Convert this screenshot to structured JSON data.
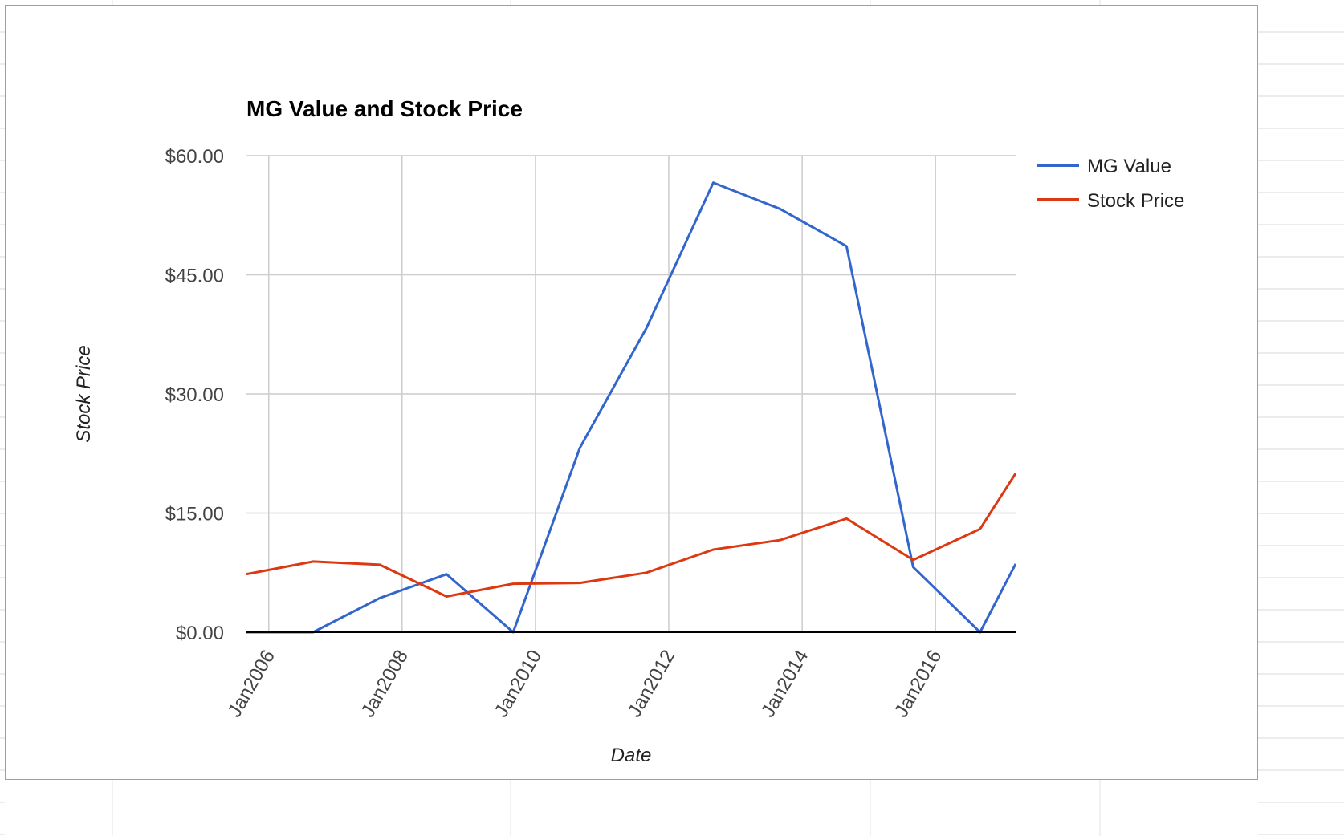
{
  "chart_data": {
    "type": "line",
    "title": "MG Value and Stock Price",
    "xlabel": "Date",
    "ylabel": "Stock Price",
    "x_ticks": [
      "Jan2006",
      "Jan2008",
      "Jan2010",
      "Jan2012",
      "Jan2014",
      "Jan2016"
    ],
    "y_ticks": [
      "$0.00",
      "$15.00",
      "$30.00",
      "$45.00",
      "$60.00"
    ],
    "ylim": [
      0,
      60
    ],
    "xlim": [
      "2005-09-01",
      "2017-03-15"
    ],
    "grid": true,
    "legend_position": "right",
    "x": [
      "2005-09-01",
      "2006-09-01",
      "2007-09-01",
      "2008-09-01",
      "2009-09-01",
      "2010-09-01",
      "2011-09-01",
      "2012-09-01",
      "2013-09-01",
      "2014-09-01",
      "2015-09-01",
      "2016-09-01",
      "2017-03-15"
    ],
    "series": [
      {
        "name": "MG Value",
        "color": "#3366cc",
        "values": [
          0.0,
          0.0,
          4.3,
          7.3,
          0.0,
          23.2,
          38.3,
          56.6,
          53.3,
          48.6,
          8.2,
          0.0,
          8.6
        ]
      },
      {
        "name": "Stock Price",
        "color": "#dc3912",
        "values": [
          7.3,
          8.9,
          8.5,
          4.5,
          6.1,
          6.2,
          7.5,
          10.4,
          11.6,
          14.3,
          9.1,
          13.0,
          20.0
        ]
      }
    ]
  }
}
